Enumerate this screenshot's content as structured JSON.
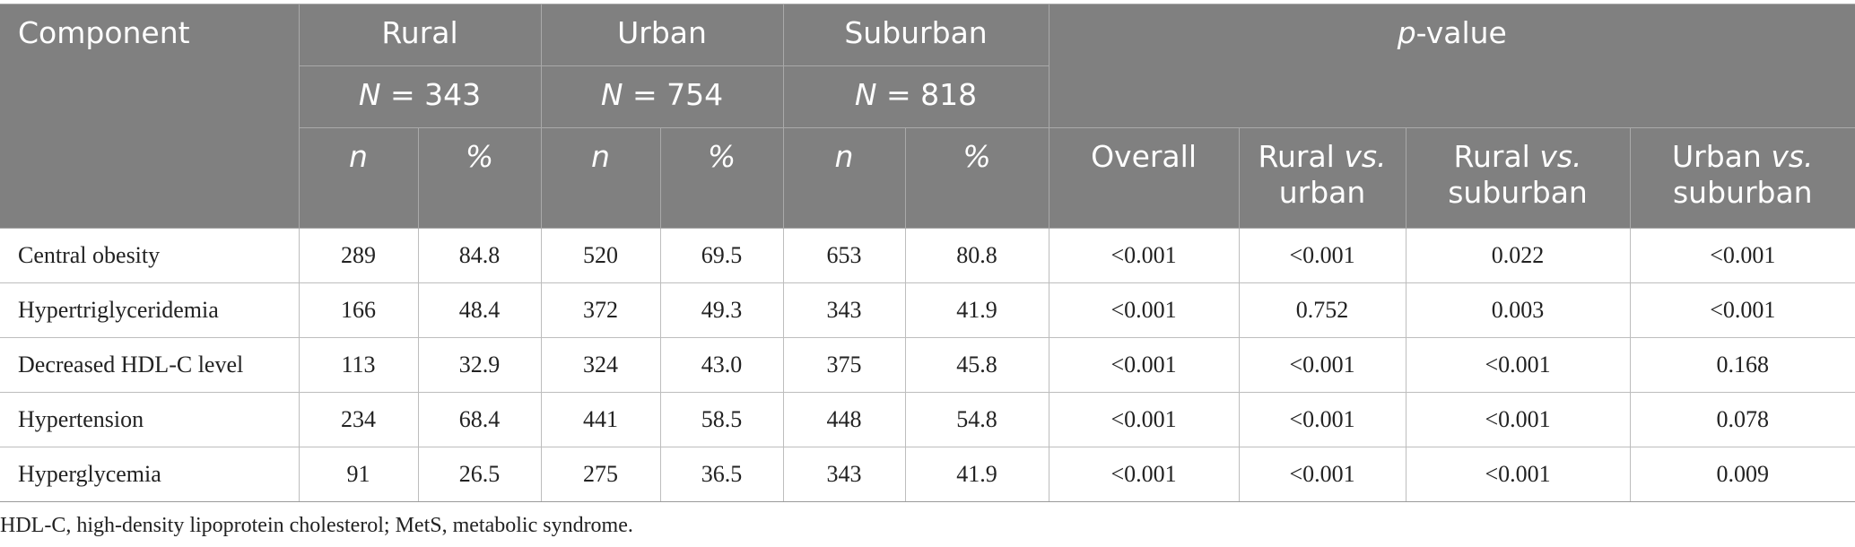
{
  "header": {
    "component": "Component",
    "rural": "Rural",
    "urban": "Urban",
    "suburban": "Suburban",
    "p_value_prefix": "p",
    "p_value_suffix": "-value",
    "n_prefix": "N",
    "rural_n": " = 343",
    "urban_n": " = 754",
    "suburban_n": " = 818",
    "n_label": "n",
    "pct_label": "%",
    "overall": "Overall",
    "rural_vs_urban": {
      "a": "Rural ",
      "vs": "vs.",
      "b": "urban"
    },
    "rural_vs_suburban": {
      "a": "Rural ",
      "vs": "vs.",
      "b": "suburban"
    },
    "urban_vs_suburban": {
      "a": "Urban ",
      "vs": "vs.",
      "b": "suburban"
    }
  },
  "rows": [
    {
      "component": "Central obesity",
      "rural_n": "289",
      "rural_pct": "84.8",
      "urban_n": "520",
      "urban_pct": "69.5",
      "suburban_n": "653",
      "suburban_pct": "80.8",
      "overall": "<0.001",
      "rural_vs_urban": "<0.001",
      "rural_vs_suburban": "0.022",
      "urban_vs_suburban": "<0.001"
    },
    {
      "component": "Hypertriglyceridemia",
      "rural_n": "166",
      "rural_pct": "48.4",
      "urban_n": "372",
      "urban_pct": "49.3",
      "suburban_n": "343",
      "suburban_pct": "41.9",
      "overall": "<0.001",
      "rural_vs_urban": "0.752",
      "rural_vs_suburban": "0.003",
      "urban_vs_suburban": "<0.001"
    },
    {
      "component": "Decreased HDL-C level",
      "rural_n": "113",
      "rural_pct": "32.9",
      "urban_n": "324",
      "urban_pct": "43.0",
      "suburban_n": "375",
      "suburban_pct": "45.8",
      "overall": "<0.001",
      "rural_vs_urban": "<0.001",
      "rural_vs_suburban": "<0.001",
      "urban_vs_suburban": "0.168"
    },
    {
      "component": "Hypertension",
      "rural_n": "234",
      "rural_pct": "68.4",
      "urban_n": "441",
      "urban_pct": "58.5",
      "suburban_n": "448",
      "suburban_pct": "54.8",
      "overall": "<0.001",
      "rural_vs_urban": "<0.001",
      "rural_vs_suburban": "<0.001",
      "urban_vs_suburban": "0.078"
    },
    {
      "component": "Hyperglycemia",
      "rural_n": "91",
      "rural_pct": "26.5",
      "urban_n": "275",
      "urban_pct": "36.5",
      "suburban_n": "343",
      "suburban_pct": "41.9",
      "overall": "<0.001",
      "rural_vs_urban": "<0.001",
      "rural_vs_suburban": "<0.001",
      "urban_vs_suburban": "0.009"
    }
  ],
  "footnote": "HDL-C, high-density lipoprotein cholesterol; MetS, metabolic syndrome."
}
